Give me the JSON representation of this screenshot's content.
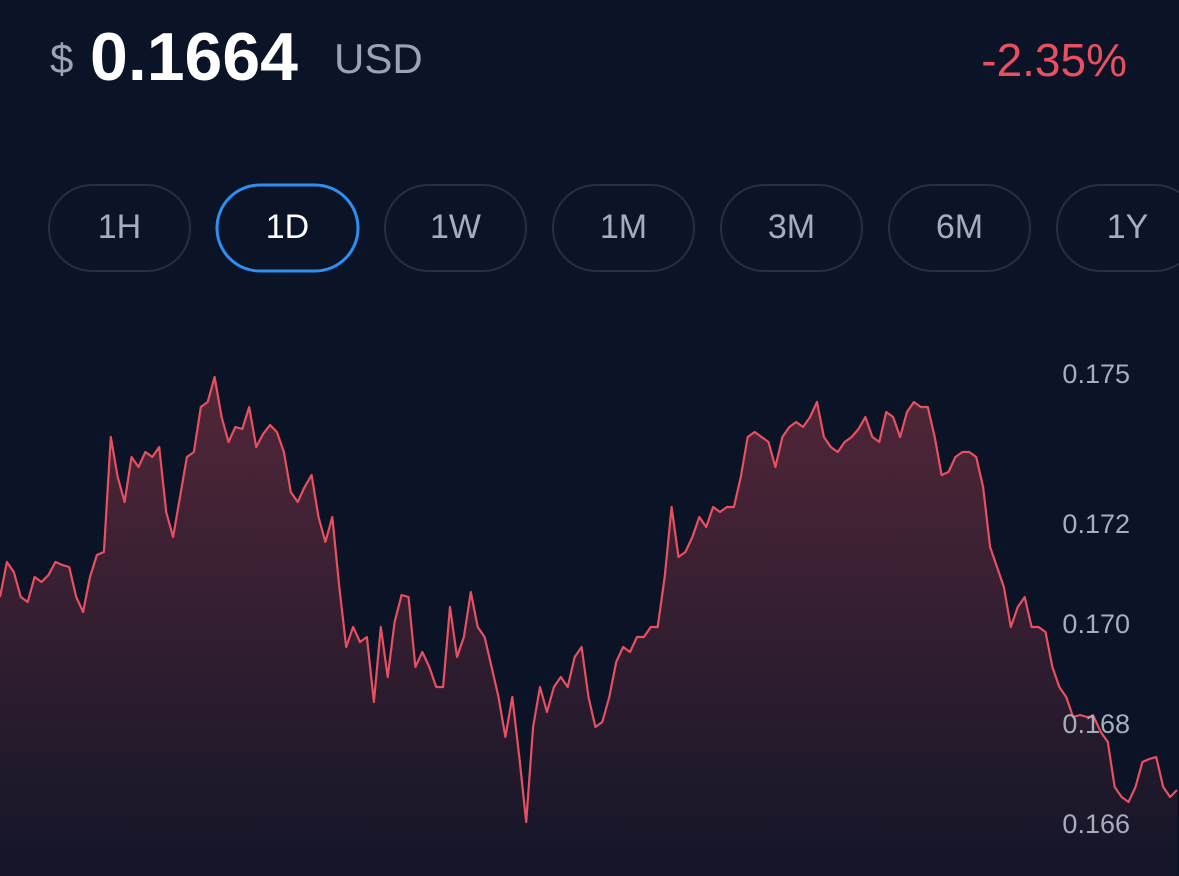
{
  "header": {
    "currency_symbol": "$",
    "price": "0.1664",
    "currency": "USD",
    "change": "-2.35%"
  },
  "ranges": {
    "options": [
      "1H",
      "1D",
      "1W",
      "1M",
      "3M",
      "6M",
      "1Y"
    ],
    "selected": 1
  },
  "chart_data": {
    "type": "line",
    "color": "#e8505f",
    "grid": false,
    "ylim": [
      0.165,
      0.176
    ],
    "yticks": [
      0.166,
      0.168,
      {
        "value": 0.17,
        "label": "0.170"
      },
      0.172,
      0.175
    ],
    "values": [
      0.17058,
      0.17128,
      0.17108,
      0.17058,
      0.17048,
      0.17098,
      0.17088,
      0.17102,
      0.17128,
      0.17122,
      0.17118,
      0.17058,
      0.17028,
      0.17098,
      0.17142,
      0.17148,
      0.17378,
      0.17298,
      0.17248,
      0.17338,
      0.17318,
      0.17348,
      0.17338,
      0.17358,
      0.17228,
      0.17178,
      0.17258,
      0.17338,
      0.17348,
      0.17438,
      0.17448,
      0.17498,
      0.17418,
      0.17368,
      0.17398,
      0.17394,
      0.17438,
      0.17358,
      0.17384,
      0.17402,
      0.17388,
      0.17348,
      0.17268,
      0.17248,
      0.17278,
      0.17302,
      0.17218,
      0.17168,
      0.17218,
      0.17078,
      0.16958,
      0.16998,
      0.16968,
      0.16978,
      0.16848,
      0.16998,
      0.16898,
      0.17008,
      0.17062,
      0.17058,
      0.16918,
      0.16948,
      0.16918,
      0.16878,
      0.16878,
      0.17038,
      0.16938,
      0.16978,
      0.17068,
      0.16998,
      0.16978,
      0.16918,
      0.16858,
      0.16778,
      0.16858,
      0.16738,
      0.16608,
      0.16798,
      0.16878,
      0.16828,
      0.16878,
      0.16898,
      0.16878,
      0.16938,
      0.16958,
      0.16858,
      0.16798,
      0.16808,
      0.16858,
      0.16928,
      0.16958,
      0.16948,
      0.16978,
      0.16978,
      0.16998,
      0.16998,
      0.17098,
      0.17238,
      0.17138,
      0.17148,
      0.17178,
      0.17218,
      0.17198,
      0.17238,
      0.17228,
      0.17238,
      0.17238,
      0.17298,
      0.17378,
      0.17388,
      0.17378,
      0.17368,
      0.17318,
      0.17378,
      0.17398,
      0.17408,
      0.17398,
      0.17418,
      0.17448,
      0.17378,
      0.17358,
      0.17348,
      0.17368,
      0.17378,
      0.17394,
      0.17418,
      0.17378,
      0.17368,
      0.17428,
      0.17418,
      0.17378,
      0.17428,
      0.17448,
      0.17438,
      0.17438,
      0.17378,
      0.17302,
      0.17308,
      0.17338,
      0.17348,
      0.17348,
      0.17338,
      0.17278,
      0.17158,
      0.17118,
      0.17078,
      0.16998,
      0.17038,
      0.17058,
      0.16998,
      0.16998,
      0.16988,
      0.16918,
      0.16878,
      0.16858,
      0.16818,
      0.16822,
      0.16818,
      0.16818,
      0.16788,
      0.16768,
      0.16678,
      0.16658,
      0.16648,
      0.16678,
      0.16728,
      0.16734,
      0.16738,
      0.16678,
      0.16658,
      0.16672
    ]
  }
}
